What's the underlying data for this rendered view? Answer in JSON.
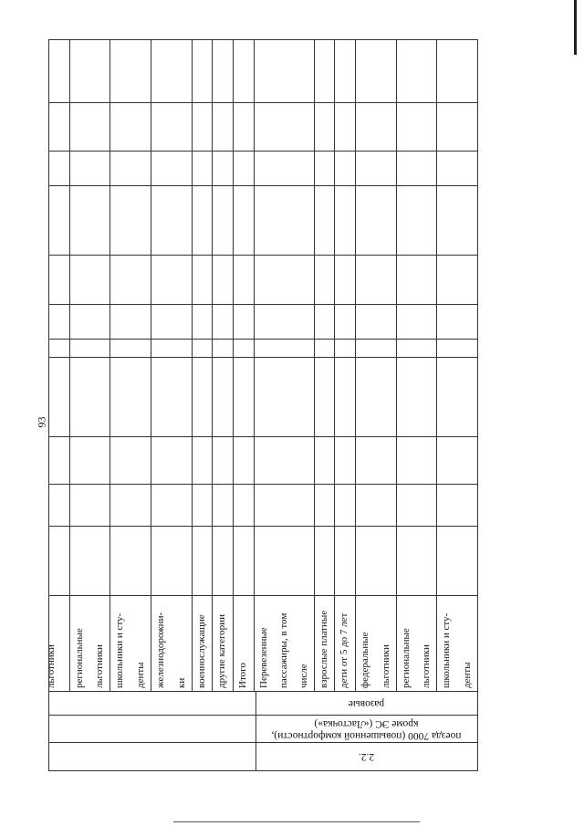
{
  "page_number": "93",
  "table": {
    "row_labels": [
      [
        "льготники"
      ],
      [
        "региональные",
        "льготники"
      ],
      [
        "школьники и сту-",
        "денты"
      ],
      [
        "железнодорожни-",
        "ки"
      ],
      [
        "военнослужащие"
      ],
      [
        "другие категории"
      ],
      [
        "Итого"
      ],
      [
        "Перевезенные",
        "пассажиры, в том",
        "числе"
      ],
      [
        "взрослые платные"
      ],
      [
        "дети  от 5 до 7 лет"
      ],
      [
        "федеральные",
        "льготники"
      ],
      [
        "региональные",
        "льготники"
      ],
      [
        "школьники и сту-",
        "денты"
      ]
    ],
    "ticket_type": "разовые",
    "train_category": [
      "поезда 7000 (повышенной комфортности),",
      "кроме ЭС («Ласточка»)"
    ],
    "section_number": "2.2."
  }
}
